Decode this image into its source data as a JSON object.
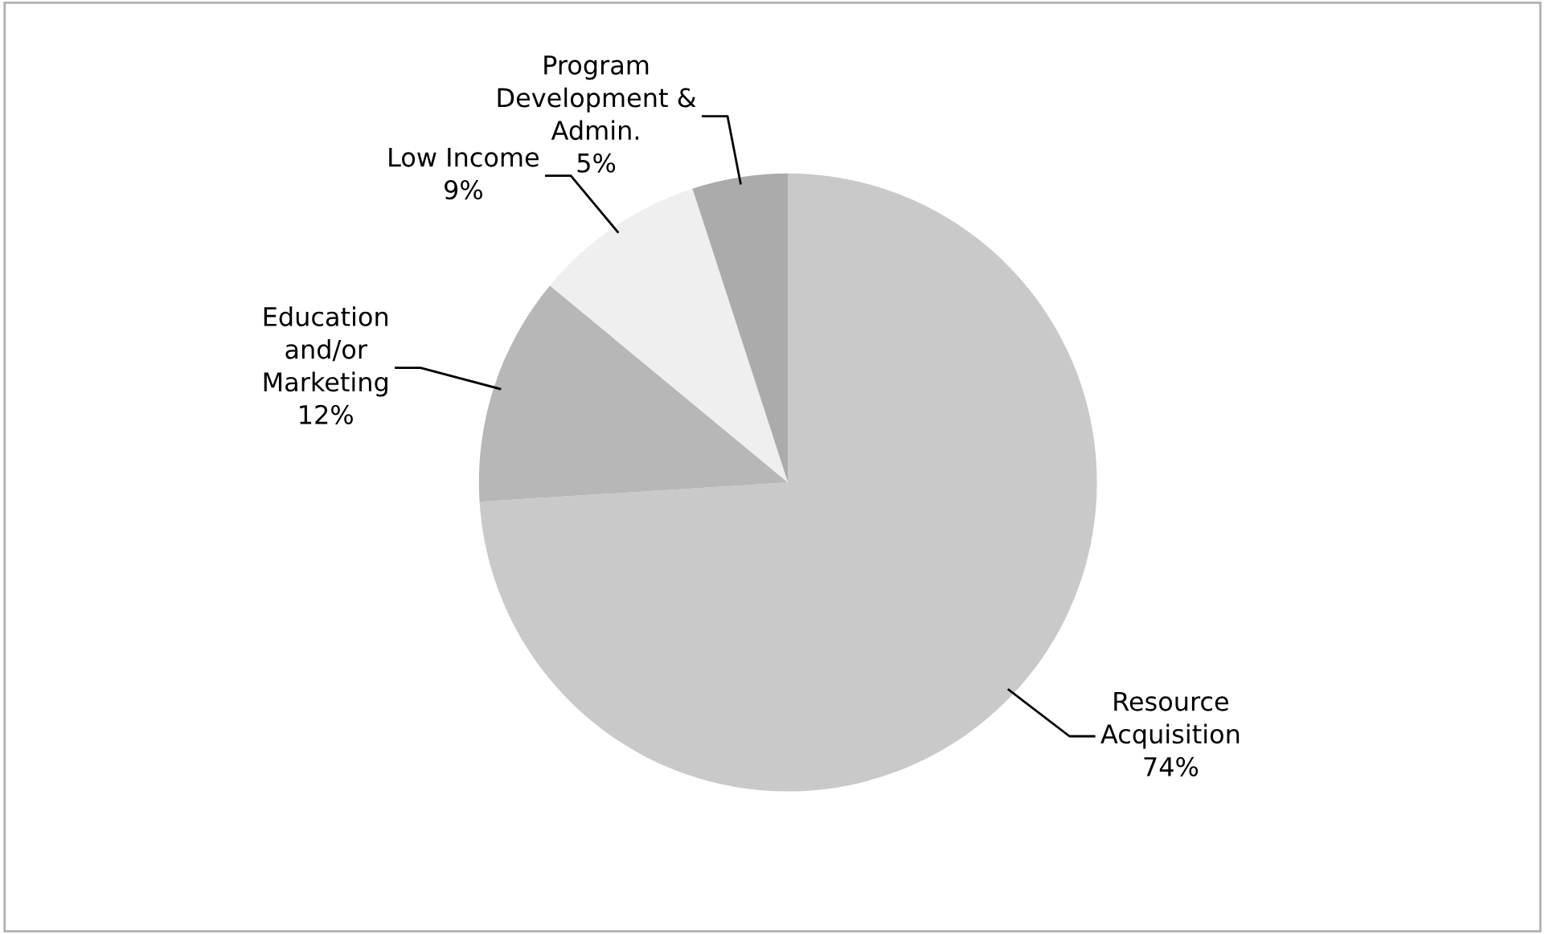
{
  "chart_data": {
    "type": "pie",
    "categories": [
      "Resource\nAcquisition",
      "Education\nand/or\nMarketing",
      "Low Income",
      "Program\nDevelopment &\nAdmin."
    ],
    "values": [
      74,
      12,
      9,
      5
    ],
    "value_labels": [
      "74%",
      "12%",
      "9%",
      "5%"
    ],
    "colors": [
      "#c9c9c9",
      "#b7b7b7",
      "#efefef",
      "#ababab"
    ],
    "legend": false
  }
}
